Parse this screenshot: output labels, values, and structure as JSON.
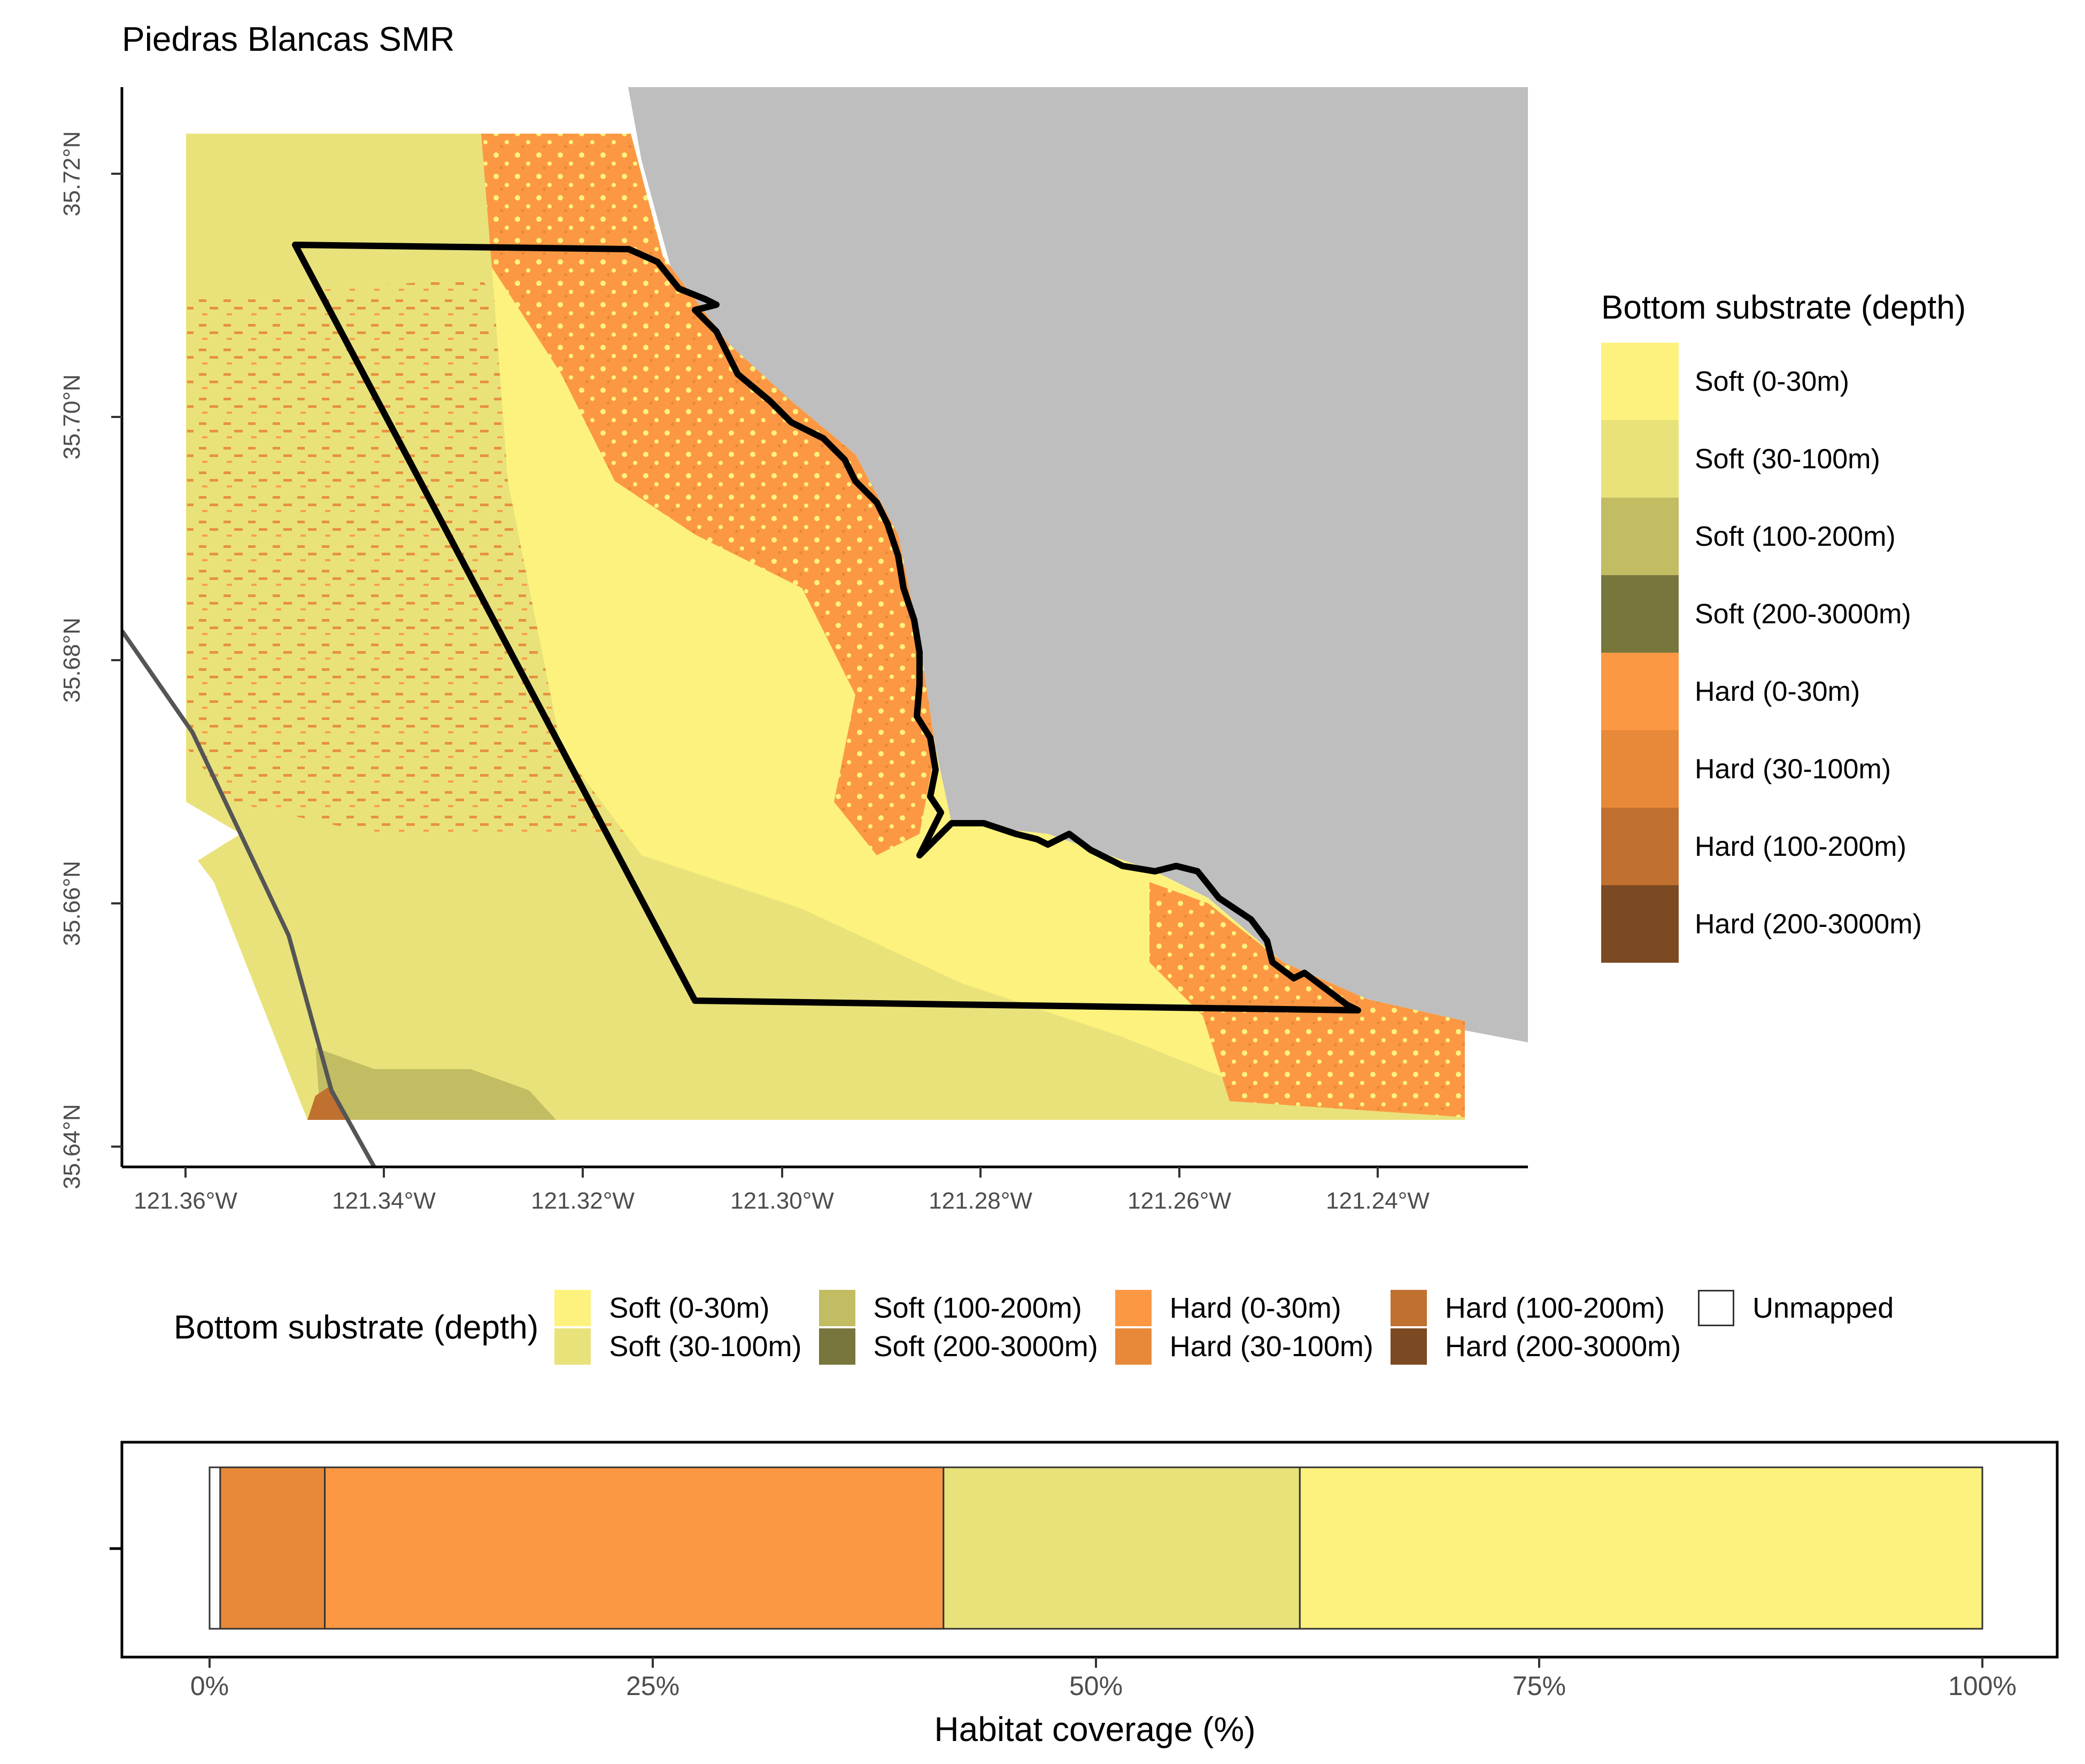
{
  "title": "Piedras Blancas SMR",
  "map": {
    "x_ticks": [
      "121.36°W",
      "121.34°W",
      "121.32°W",
      "121.30°W",
      "121.28°W",
      "121.26°W",
      "121.24°W"
    ],
    "y_ticks": [
      "35.72°N",
      "35.70°N",
      "35.68°N",
      "35.66°N",
      "35.64°N"
    ],
    "land_color": "#bebebe",
    "boundary_color": "#000000",
    "state_line_color": "#555555"
  },
  "legend_right": {
    "title": "Bottom substrate (depth)",
    "items": [
      {
        "label": "Soft (0-30m)",
        "color": "#fdf27d"
      },
      {
        "label": "Soft (30-100m)",
        "color": "#e9e27a"
      },
      {
        "label": "Soft (100-200m)",
        "color": "#c2bc62"
      },
      {
        "label": "Soft (200-3000m)",
        "color": "#77763c"
      },
      {
        "label": "Hard (0-30m)",
        "color": "#fc9843"
      },
      {
        "label": "Hard (30-100m)",
        "color": "#e78938"
      },
      {
        "label": "Hard (100-200m)",
        "color": "#c0702f"
      },
      {
        "label": "Hard (200-3000m)",
        "color": "#7c4a22"
      }
    ]
  },
  "legend_bottom": {
    "title": "Bottom substrate (depth)",
    "items": [
      {
        "label": "Soft (0-30m)",
        "color": "#fdf27d"
      },
      {
        "label": "Soft (30-100m)",
        "color": "#e9e27a"
      },
      {
        "label": "Soft (100-200m)",
        "color": "#c2bc62"
      },
      {
        "label": "Soft (200-3000m)",
        "color": "#77763c"
      },
      {
        "label": "Hard (0-30m)",
        "color": "#fc9843"
      },
      {
        "label": "Hard (30-100m)",
        "color": "#e78938"
      },
      {
        "label": "Hard (100-200m)",
        "color": "#c0702f"
      },
      {
        "label": "Hard (200-3000m)",
        "color": "#7c4a22"
      },
      {
        "label": "Unmapped",
        "color": "#ffffff"
      }
    ]
  },
  "coverage_bar": {
    "xlabel": "Habitat coverage (%)",
    "tick_labels": [
      "0%",
      "25%",
      "50%",
      "75%",
      "100%"
    ],
    "segments": [
      {
        "name": "Unmapped",
        "percent": 0.6,
        "color": "#ffffff"
      },
      {
        "name": "Hard (30-100m)",
        "percent": 5.9,
        "color": "#e78938"
      },
      {
        "name": "Hard (0-30m)",
        "percent": 34.9,
        "color": "#fc9843"
      },
      {
        "name": "Soft (30-100m)",
        "percent": 20.1,
        "color": "#e9e27a"
      },
      {
        "name": "Soft (0-30m)",
        "percent": 38.5,
        "color": "#fdf27d"
      }
    ]
  }
}
